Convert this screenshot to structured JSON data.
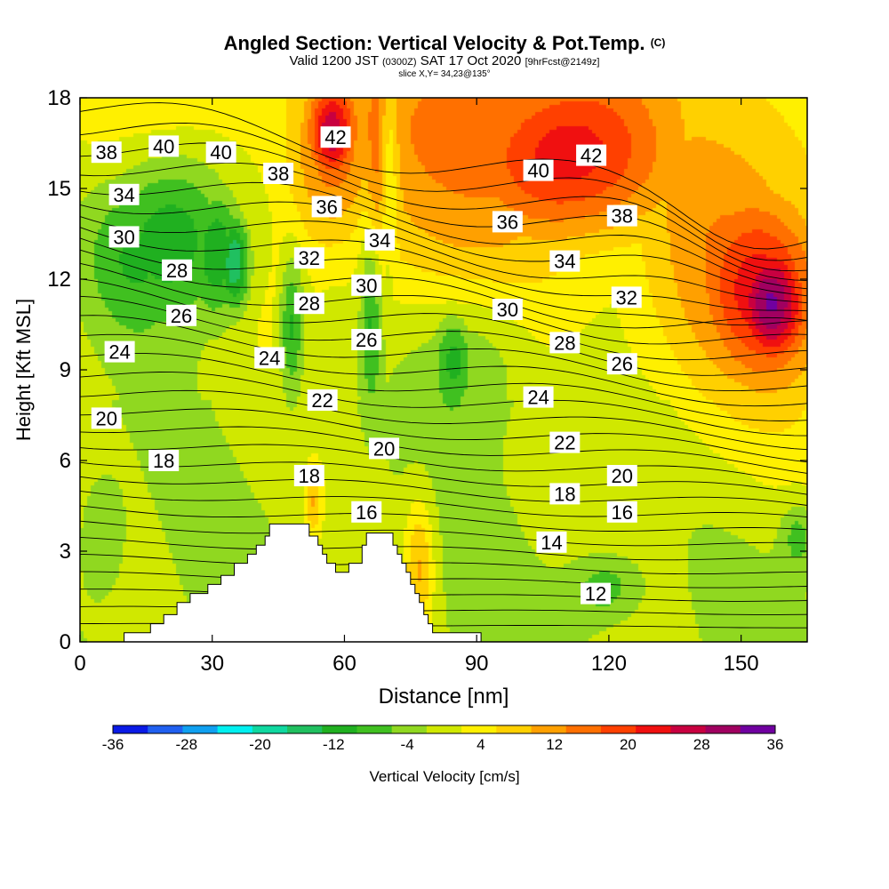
{
  "header": {
    "title": "Angled Section: Vertical Velocity & Pot.Temp.",
    "title_tag": "(C)",
    "valid_prefix": "Valid 1200 JST",
    "valid_utc": "(0300Z)",
    "valid_date": "SAT 17 Oct 2020",
    "forecast": "[9hrFcst@2149z]",
    "slice": "slice X,Y= 34,23@135°"
  },
  "chart_data": {
    "type": "heatmap",
    "title": "Angled Section: Vertical Velocity & Pot.Temp.",
    "xlabel": "Distance [nm]",
    "ylabel": "Height [Kft MSL]",
    "xlim": [
      0,
      165
    ],
    "ylim": [
      0,
      18
    ],
    "x_ticks": [
      "0",
      "30",
      "60",
      "90",
      "120",
      "150"
    ],
    "y_ticks": [
      "0",
      "3",
      "6",
      "9",
      "12",
      "15",
      "18"
    ],
    "shaded_field": "Vertical Velocity [cm/s]",
    "contour_field": "Pot.Temp.",
    "colorbar": {
      "title": "Vertical Velocity [cm/s]",
      "labels": [
        "-36",
        "-28",
        "-20",
        "-12",
        "-4",
        "4",
        "12",
        "20",
        "28",
        "36"
      ],
      "bounds": [
        -36,
        -32,
        -28,
        -24,
        -20,
        -16,
        -12,
        -8,
        -4,
        0,
        4,
        8,
        12,
        16,
        20,
        24,
        28,
        32,
        36
      ],
      "colors": [
        "#0a1ae6",
        "#2060f0",
        "#10a0f0",
        "#00f0f0",
        "#10d8a0",
        "#20c060",
        "#20b020",
        "#40c020",
        "#90d820",
        "#d0e800",
        "#fff000",
        "#ffd000",
        "#ffa000",
        "#ff7000",
        "#ff4000",
        "#f01010",
        "#c80040",
        "#a00060",
        "#7000a0"
      ]
    },
    "contour_labels": [
      {
        "text": "42",
        "x": 58,
        "y": 16.7
      },
      {
        "text": "42",
        "x": 116,
        "y": 16.1
      },
      {
        "text": "40",
        "x": 19,
        "y": 16.4
      },
      {
        "text": "40",
        "x": 32,
        "y": 16.2
      },
      {
        "text": "40",
        "x": 104,
        "y": 15.6
      },
      {
        "text": "38",
        "x": 6,
        "y": 16.2
      },
      {
        "text": "38",
        "x": 45,
        "y": 15.5
      },
      {
        "text": "38",
        "x": 123,
        "y": 14.1
      },
      {
        "text": "36",
        "x": 56,
        "y": 14.4
      },
      {
        "text": "36",
        "x": 97,
        "y": 13.9
      },
      {
        "text": "34",
        "x": 10,
        "y": 14.8
      },
      {
        "text": "34",
        "x": 68,
        "y": 13.3
      },
      {
        "text": "34",
        "x": 110,
        "y": 12.6
      },
      {
        "text": "32",
        "x": 52,
        "y": 12.7
      },
      {
        "text": "32",
        "x": 124,
        "y": 11.4
      },
      {
        "text": "30",
        "x": 10,
        "y": 13.4
      },
      {
        "text": "30",
        "x": 65,
        "y": 11.8
      },
      {
        "text": "30",
        "x": 97,
        "y": 11.0
      },
      {
        "text": "28",
        "x": 22,
        "y": 12.3
      },
      {
        "text": "28",
        "x": 52,
        "y": 11.2
      },
      {
        "text": "28",
        "x": 110,
        "y": 9.9
      },
      {
        "text": "26",
        "x": 23,
        "y": 10.8
      },
      {
        "text": "26",
        "x": 65,
        "y": 10.0
      },
      {
        "text": "26",
        "x": 123,
        "y": 9.2
      },
      {
        "text": "24",
        "x": 9,
        "y": 9.6
      },
      {
        "text": "24",
        "x": 43,
        "y": 9.4
      },
      {
        "text": "24",
        "x": 104,
        "y": 8.1
      },
      {
        "text": "22",
        "x": 55,
        "y": 8.0
      },
      {
        "text": "22",
        "x": 110,
        "y": 6.6
      },
      {
        "text": "20",
        "x": 6,
        "y": 7.4
      },
      {
        "text": "20",
        "x": 69,
        "y": 6.4
      },
      {
        "text": "20",
        "x": 123,
        "y": 5.5
      },
      {
        "text": "18",
        "x": 19,
        "y": 6.0
      },
      {
        "text": "18",
        "x": 52,
        "y": 5.5
      },
      {
        "text": "18",
        "x": 110,
        "y": 4.9
      },
      {
        "text": "16",
        "x": 65,
        "y": 4.3
      },
      {
        "text": "16",
        "x": 123,
        "y": 4.3
      },
      {
        "text": "14",
        "x": 107,
        "y": 3.3
      },
      {
        "text": "12",
        "x": 117,
        "y": 1.6
      }
    ],
    "terrain_profile": [
      {
        "x": 0,
        "y": 0
      },
      {
        "x": 10,
        "y": 0
      },
      {
        "x": 10,
        "y": 0.3
      },
      {
        "x": 16,
        "y": 0.3
      },
      {
        "x": 16,
        "y": 0.6
      },
      {
        "x": 19,
        "y": 0.6
      },
      {
        "x": 19,
        "y": 0.9
      },
      {
        "x": 22,
        "y": 0.9
      },
      {
        "x": 22,
        "y": 1.3
      },
      {
        "x": 25,
        "y": 1.3
      },
      {
        "x": 25,
        "y": 1.6
      },
      {
        "x": 29,
        "y": 1.6
      },
      {
        "x": 29,
        "y": 1.9
      },
      {
        "x": 32,
        "y": 1.9
      },
      {
        "x": 32,
        "y": 2.2
      },
      {
        "x": 35,
        "y": 2.2
      },
      {
        "x": 35,
        "y": 2.6
      },
      {
        "x": 38,
        "y": 2.6
      },
      {
        "x": 38,
        "y": 2.9
      },
      {
        "x": 40,
        "y": 2.9
      },
      {
        "x": 40,
        "y": 3.2
      },
      {
        "x": 42,
        "y": 3.2
      },
      {
        "x": 42,
        "y": 3.5
      },
      {
        "x": 43,
        "y": 3.5
      },
      {
        "x": 43,
        "y": 3.9
      },
      {
        "x": 52,
        "y": 3.9
      },
      {
        "x": 52,
        "y": 3.5
      },
      {
        "x": 54,
        "y": 3.5
      },
      {
        "x": 54,
        "y": 3.2
      },
      {
        "x": 55,
        "y": 3.2
      },
      {
        "x": 55,
        "y": 2.9
      },
      {
        "x": 56,
        "y": 2.9
      },
      {
        "x": 56,
        "y": 2.6
      },
      {
        "x": 58,
        "y": 2.6
      },
      {
        "x": 58,
        "y": 2.3
      },
      {
        "x": 61,
        "y": 2.3
      },
      {
        "x": 61,
        "y": 2.6
      },
      {
        "x": 64,
        "y": 2.6
      },
      {
        "x": 64,
        "y": 3.2
      },
      {
        "x": 65,
        "y": 3.2
      },
      {
        "x": 65,
        "y": 3.6
      },
      {
        "x": 71,
        "y": 3.6
      },
      {
        "x": 71,
        "y": 3.2
      },
      {
        "x": 72,
        "y": 3.2
      },
      {
        "x": 72,
        "y": 2.9
      },
      {
        "x": 73,
        "y": 2.9
      },
      {
        "x": 73,
        "y": 2.6
      },
      {
        "x": 74,
        "y": 2.6
      },
      {
        "x": 74,
        "y": 2.3
      },
      {
        "x": 75,
        "y": 2.3
      },
      {
        "x": 75,
        "y": 1.9
      },
      {
        "x": 76,
        "y": 1.9
      },
      {
        "x": 76,
        "y": 1.6
      },
      {
        "x": 77,
        "y": 1.6
      },
      {
        "x": 77,
        "y": 1.3
      },
      {
        "x": 78,
        "y": 1.3
      },
      {
        "x": 78,
        "y": 0.9
      },
      {
        "x": 79,
        "y": 0.9
      },
      {
        "x": 79,
        "y": 0.6
      },
      {
        "x": 80,
        "y": 0.6
      },
      {
        "x": 80,
        "y": 0.3
      },
      {
        "x": 91,
        "y": 0.3
      },
      {
        "x": 91,
        "y": 0
      }
    ],
    "velocity_features": [
      {
        "x": 157,
        "y": 11.2,
        "rx": 9,
        "ry": 2.2,
        "value": 32
      },
      {
        "x": 155,
        "y": 11.5,
        "rx": 16,
        "ry": 3.5,
        "value": 22
      },
      {
        "x": 150,
        "y": 11.5,
        "rx": 25,
        "ry": 5.8,
        "value": 12
      },
      {
        "x": 110,
        "y": 16.0,
        "rx": 22,
        "ry": 3.0,
        "value": 22
      },
      {
        "x": 100,
        "y": 16.5,
        "rx": 34,
        "ry": 3.5,
        "value": 14
      },
      {
        "x": 96,
        "y": 15.0,
        "rx": 42,
        "ry": 4.5,
        "value": 9
      },
      {
        "x": 57,
        "y": 16.8,
        "rx": 6,
        "ry": 1.8,
        "value": 26
      },
      {
        "x": 57,
        "y": 16.0,
        "rx": 10,
        "ry": 3.2,
        "value": 14
      },
      {
        "x": 68,
        "y": 16.0,
        "rx": 5,
        "ry": 4.0,
        "value": 12
      },
      {
        "x": 22,
        "y": 13.6,
        "rx": 16,
        "ry": 3.2,
        "value": -16
      },
      {
        "x": 31,
        "y": 13.0,
        "rx": 7,
        "ry": 2.5,
        "value": -18
      },
      {
        "x": 35,
        "y": 12.6,
        "rx": 4,
        "ry": 1.8,
        "value": -22
      },
      {
        "x": 14,
        "y": 13.0,
        "rx": 14,
        "ry": 3.0,
        "value": -12
      },
      {
        "x": 48,
        "y": 10.5,
        "rx": 3,
        "ry": 2.5,
        "value": -13
      },
      {
        "x": 66,
        "y": 10.8,
        "rx": 2.5,
        "ry": 3.0,
        "value": -11
      },
      {
        "x": 70,
        "y": 16.0,
        "rx": 2.0,
        "ry": 3.5,
        "value": -10
      },
      {
        "x": 85,
        "y": 9.5,
        "rx": 5,
        "ry": 1.8,
        "value": -13
      },
      {
        "x": 90,
        "y": 9.6,
        "rx": 14,
        "ry": 2.8,
        "value": -7
      },
      {
        "x": 119,
        "y": 1.8,
        "rx": 8,
        "ry": 1.1,
        "value": -8
      },
      {
        "x": 5,
        "y": 3.5,
        "rx": 5,
        "ry": 2.0,
        "value": -6
      },
      {
        "x": 163,
        "y": 3.5,
        "rx": 4,
        "ry": 1.2,
        "value": -8
      },
      {
        "x": 77,
        "y": 2.5,
        "rx": 3.5,
        "ry": 2.5,
        "value": 12
      },
      {
        "x": 53,
        "y": 4.6,
        "rx": 2,
        "ry": 1.2,
        "value": 10
      }
    ]
  }
}
